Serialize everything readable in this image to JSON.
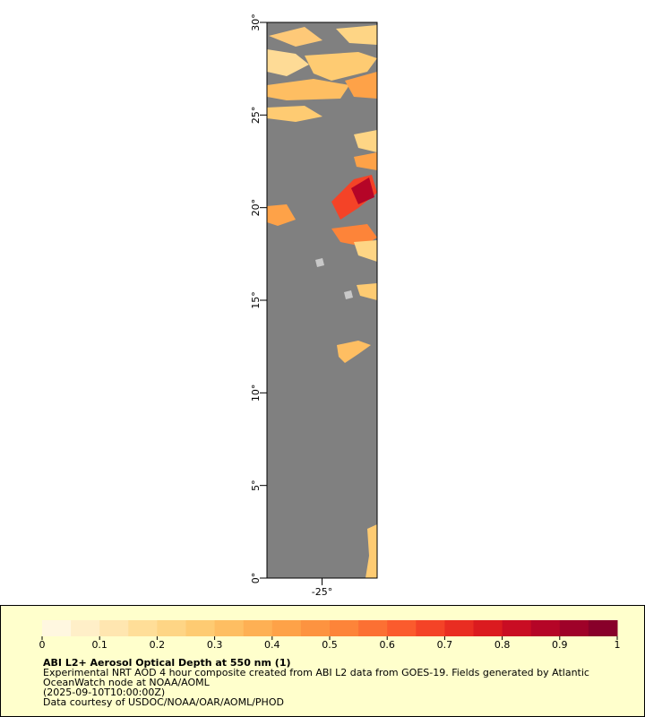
{
  "map": {
    "xlim": [
      -28,
      -22
    ],
    "ylim": [
      0,
      30
    ],
    "xticks": [
      {
        "value": -25,
        "label": "-25°"
      }
    ],
    "yticks": [
      {
        "value": 0,
        "label": "0°"
      },
      {
        "value": 5,
        "label": "5°"
      },
      {
        "value": 10,
        "label": "10°"
      },
      {
        "value": 15,
        "label": "15°"
      },
      {
        "value": 20,
        "label": "20°"
      },
      {
        "value": 25,
        "label": "25°"
      },
      {
        "value": 30,
        "label": "30°"
      }
    ]
  },
  "colorbar": {
    "range": [
      0,
      1
    ],
    "ticks": [
      0,
      0.1,
      0.2,
      0.3,
      0.4,
      0.5,
      0.6,
      0.7,
      0.8,
      0.9,
      1
    ],
    "colors": [
      "#fff7e0",
      "#ffefc8",
      "#ffe6b0",
      "#ffde98",
      "#fed585",
      "#fecb72",
      "#febe62",
      "#feb054",
      "#fea248",
      "#fd9340",
      "#fd8439",
      "#fc7033",
      "#fb5b2d",
      "#f44327",
      "#e92d22",
      "#db1b1f",
      "#c90d23",
      "#b50527",
      "#9f0229",
      "#88002a"
    ],
    "title": "ABI L2+ Aerosol Optical Depth at 550 nm (1)",
    "lines": [
      "Experimental NRT AOD 4 hour composite created from ABI L2 data from GOES-19. Fields generated by Atlantic",
      "OceanWatch node at NOAA/AOML",
      "(2025-09-10T10:00:00Z)",
      "Data courtesy of USDOC/NOAA/OAR/AOML/PHOD"
    ]
  }
}
